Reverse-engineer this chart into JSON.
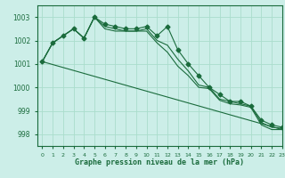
{
  "background_color": "#cceee8",
  "grid_color": "#aaddcc",
  "line_color": "#1a6b3c",
  "xlabel": "Graphe pression niveau de la mer (hPa)",
  "ylim": [
    997.5,
    1003.5
  ],
  "xlim": [
    -0.5,
    23
  ],
  "yticks": [
    998,
    999,
    1000,
    1001,
    1002,
    1003
  ],
  "xticks": [
    0,
    1,
    2,
    3,
    4,
    5,
    6,
    7,
    8,
    9,
    10,
    11,
    12,
    13,
    14,
    15,
    16,
    17,
    18,
    19,
    20,
    21,
    22,
    23
  ],
  "series": [
    {
      "x": [
        0,
        1,
        2,
        3,
        4,
        5,
        6,
        7,
        8,
        9,
        10,
        11,
        12,
        13,
        14,
        15,
        16,
        17,
        18,
        19,
        20,
        21,
        22,
        23
      ],
      "y": [
        1001.1,
        1001.9,
        1002.2,
        1002.5,
        1002.1,
        1003.0,
        1002.7,
        1002.6,
        1002.5,
        1002.5,
        1002.6,
        1002.2,
        1002.6,
        1001.6,
        1001.0,
        1000.5,
        1000.0,
        999.7,
        999.4,
        999.4,
        999.2,
        998.6,
        998.4,
        998.3
      ],
      "marker": "D",
      "markersize": 2.5
    },
    {
      "x": [
        0,
        1,
        2,
        3,
        4,
        5,
        6,
        7,
        8,
        9,
        10,
        11,
        12,
        13,
        14,
        15,
        16,
        17,
        18,
        19,
        20,
        21,
        22,
        23
      ],
      "y": [
        1001.1,
        1001.9,
        1002.2,
        1002.5,
        1002.1,
        1003.0,
        1002.6,
        1002.5,
        1002.4,
        1002.4,
        1002.5,
        1002.0,
        1001.8,
        1001.2,
        1000.7,
        1000.1,
        1000.0,
        999.5,
        999.4,
        999.3,
        999.2,
        998.5,
        998.3,
        998.25
      ],
      "marker": null,
      "markersize": 0
    },
    {
      "x": [
        0,
        1,
        2,
        3,
        4,
        5,
        6,
        7,
        8,
        9,
        10,
        11,
        12,
        13,
        14,
        15,
        16,
        17,
        18,
        19,
        20,
        21,
        22,
        23
      ],
      "y": [
        1001.1,
        1001.9,
        1002.2,
        1002.5,
        1002.1,
        1003.0,
        1002.5,
        1002.4,
        1002.4,
        1002.4,
        1002.4,
        1001.9,
        1001.5,
        1000.9,
        1000.5,
        1000.0,
        999.95,
        999.45,
        999.3,
        999.25,
        999.15,
        998.4,
        998.2,
        998.2
      ],
      "marker": null,
      "markersize": 0
    },
    {
      "x": [
        0,
        23
      ],
      "y": [
        1001.1,
        998.2
      ],
      "marker": null,
      "markersize": 0
    }
  ]
}
